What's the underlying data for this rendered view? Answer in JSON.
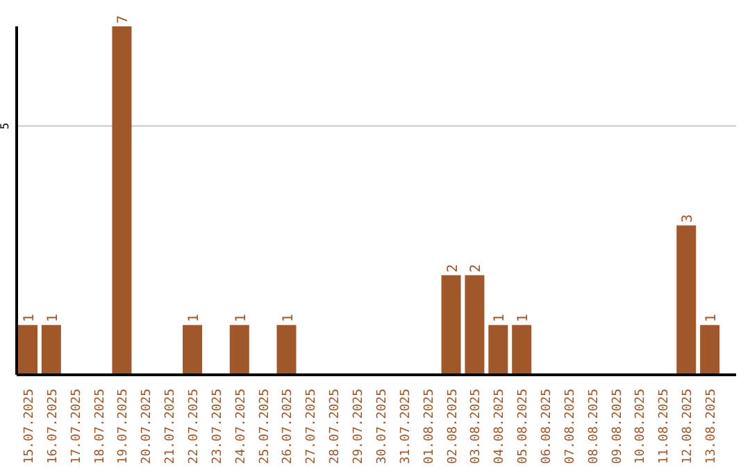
{
  "chart_data": {
    "type": "bar",
    "categories": [
      "15.07.2025",
      "16.07.2025",
      "17.07.2025",
      "18.07.2025",
      "19.07.2025",
      "20.07.2025",
      "21.07.2025",
      "22.07.2025",
      "23.07.2025",
      "24.07.2025",
      "25.07.2025",
      "26.07.2025",
      "27.07.2025",
      "28.07.2025",
      "29.07.2025",
      "30.07.2025",
      "31.07.2025",
      "01.08.2025",
      "02.08.2025",
      "03.08.2025",
      "04.08.2025",
      "05.08.2025",
      "06.08.2025",
      "07.08.2025",
      "08.08.2025",
      "09.08.2025",
      "10.08.2025",
      "11.08.2025",
      "12.08.2025",
      "13.08.2025"
    ],
    "values": [
      1,
      1,
      0,
      0,
      7,
      0,
      0,
      1,
      0,
      1,
      0,
      1,
      0,
      0,
      0,
      0,
      0,
      0,
      2,
      2,
      1,
      1,
      0,
      0,
      0,
      0,
      0,
      0,
      3,
      1
    ],
    "value_labels": [
      "1",
      "1",
      null,
      null,
      "7",
      null,
      null,
      "1",
      null,
      "1",
      null,
      "1",
      null,
      null,
      null,
      null,
      null,
      null,
      "2",
      "2",
      "1",
      "1",
      null,
      null,
      null,
      null,
      null,
      null,
      "3",
      "1"
    ],
    "color": "#a0572a",
    "ylim": [
      0,
      7
    ],
    "yticks": [
      5
    ],
    "grid": "y"
  }
}
